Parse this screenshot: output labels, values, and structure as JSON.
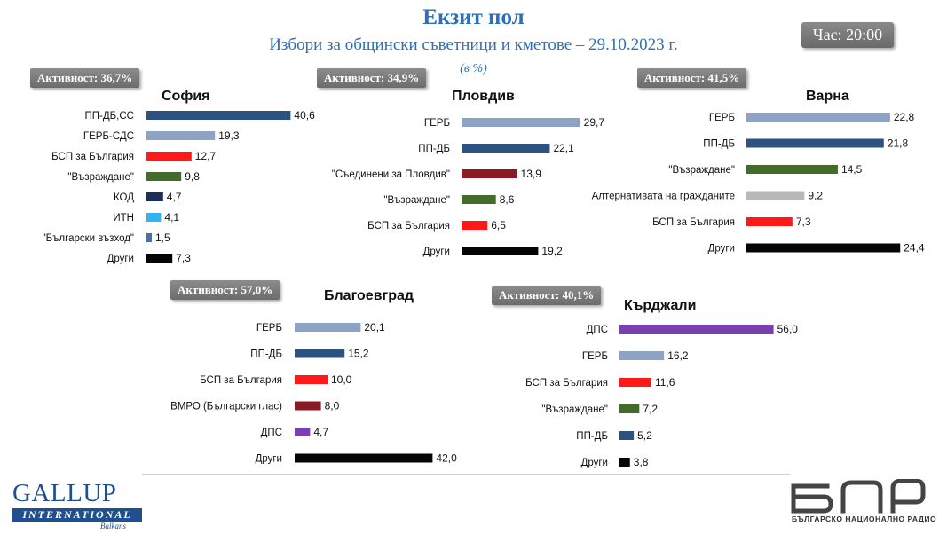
{
  "header": {
    "title": "Екзит пол",
    "subtitle": "Избори за общински съветници и кметове – 29.10.2023 г.",
    "unit": "(в %)",
    "clock": "Час: 20:00"
  },
  "colors": {
    "title": "#2e6fb5",
    "badge": "#7a7a7a"
  },
  "chart_data": [
    {
      "type": "bar",
      "orientation": "horizontal",
      "title": "София",
      "badge": "Активност: 36,7%",
      "categories": [
        "ПП-ДБ,СС",
        "ГЕРБ-СДС",
        "БСП за България",
        "\"Възраждане\"",
        "КОД",
        "ИТН",
        "\"Български възход\"",
        "Други"
      ],
      "values": [
        40.6,
        19.3,
        12.7,
        9.8,
        4.7,
        4.1,
        1.5,
        7.3
      ],
      "value_labels": [
        "40,6",
        "19,3",
        "12,7",
        "9,8",
        "4,7",
        "4,1",
        "1,5",
        "7,3"
      ],
      "colors": [
        "#2c5282",
        "#8ea2c4",
        "#ff1a1a",
        "#426b2c",
        "#1b2f5c",
        "#34b4ea",
        "#4a6fa5",
        "#050505"
      ]
    },
    {
      "type": "bar",
      "orientation": "horizontal",
      "title": "Пловдив",
      "badge": "Активност: 34,9%",
      "categories": [
        "ГЕРБ",
        "ПП-ДБ",
        "\"Съединени за Пловдив\"",
        "\"Възраждане\"",
        "БСП за България",
        "Други"
      ],
      "values": [
        29.7,
        22.1,
        13.9,
        8.6,
        6.5,
        19.2
      ],
      "value_labels": [
        "29,7",
        "22,1",
        "13,9",
        "8,6",
        "6,5",
        "19,2"
      ],
      "colors": [
        "#8ea2c4",
        "#2c5282",
        "#8b1a24",
        "#426b2c",
        "#ff1a1a",
        "#050505"
      ]
    },
    {
      "type": "bar",
      "orientation": "horizontal",
      "title": "Варна",
      "badge": "Активност: 41,5%",
      "categories": [
        "ГЕРБ",
        "ПП-ДБ",
        "\"Възраждане\"",
        "Алтернативата на гражданите",
        "БСП за България",
        "Други"
      ],
      "values": [
        22.8,
        21.8,
        14.5,
        9.2,
        7.3,
        24.4
      ],
      "value_labels": [
        "22,8",
        "21,8",
        "14,5",
        "9,2",
        "7,3",
        "24,4"
      ],
      "colors": [
        "#8ea2c4",
        "#2c5282",
        "#426b2c",
        "#b8b8b8",
        "#ff1a1a",
        "#050505"
      ]
    },
    {
      "type": "bar",
      "orientation": "horizontal",
      "title": "Благоевград",
      "badge": "Активност: 57,0%",
      "categories": [
        "ГЕРБ",
        "ПП-ДБ",
        "БСП за България",
        "ВМРО (Български глас)",
        "ДПС",
        "Други"
      ],
      "values": [
        20.1,
        15.2,
        10.0,
        8.0,
        4.7,
        42.0
      ],
      "value_labels": [
        "20,1",
        "15,2",
        "10,0",
        "8,0",
        "4,7",
        "42,0"
      ],
      "colors": [
        "#8ea2c4",
        "#2c5282",
        "#ff1a1a",
        "#8b1a24",
        "#7b3fb0",
        "#050505"
      ]
    },
    {
      "type": "bar",
      "orientation": "horizontal",
      "title": "Кърджали",
      "badge": "Активност: 40,1%",
      "categories": [
        "ДПС",
        "ГЕРБ",
        "БСП за България",
        "\"Възраждане\"",
        "ПП-ДБ",
        "Други"
      ],
      "values": [
        56.0,
        16.2,
        11.6,
        7.2,
        5.2,
        3.8
      ],
      "value_labels": [
        "56,0",
        "16,2",
        "11,6",
        "7,2",
        "5,2",
        "3,8"
      ],
      "colors": [
        "#7b3fb0",
        "#8ea2c4",
        "#ff1a1a",
        "#426b2c",
        "#2c5282",
        "#050505"
      ]
    }
  ],
  "footer": {
    "gallup_name": "GALLUP",
    "gallup_sub": "INTERNATIONAL",
    "gallup_region": "Balkans",
    "bnr_caption": "БЪЛГАРСКО НАЦИОНАЛНО РАДИО"
  }
}
